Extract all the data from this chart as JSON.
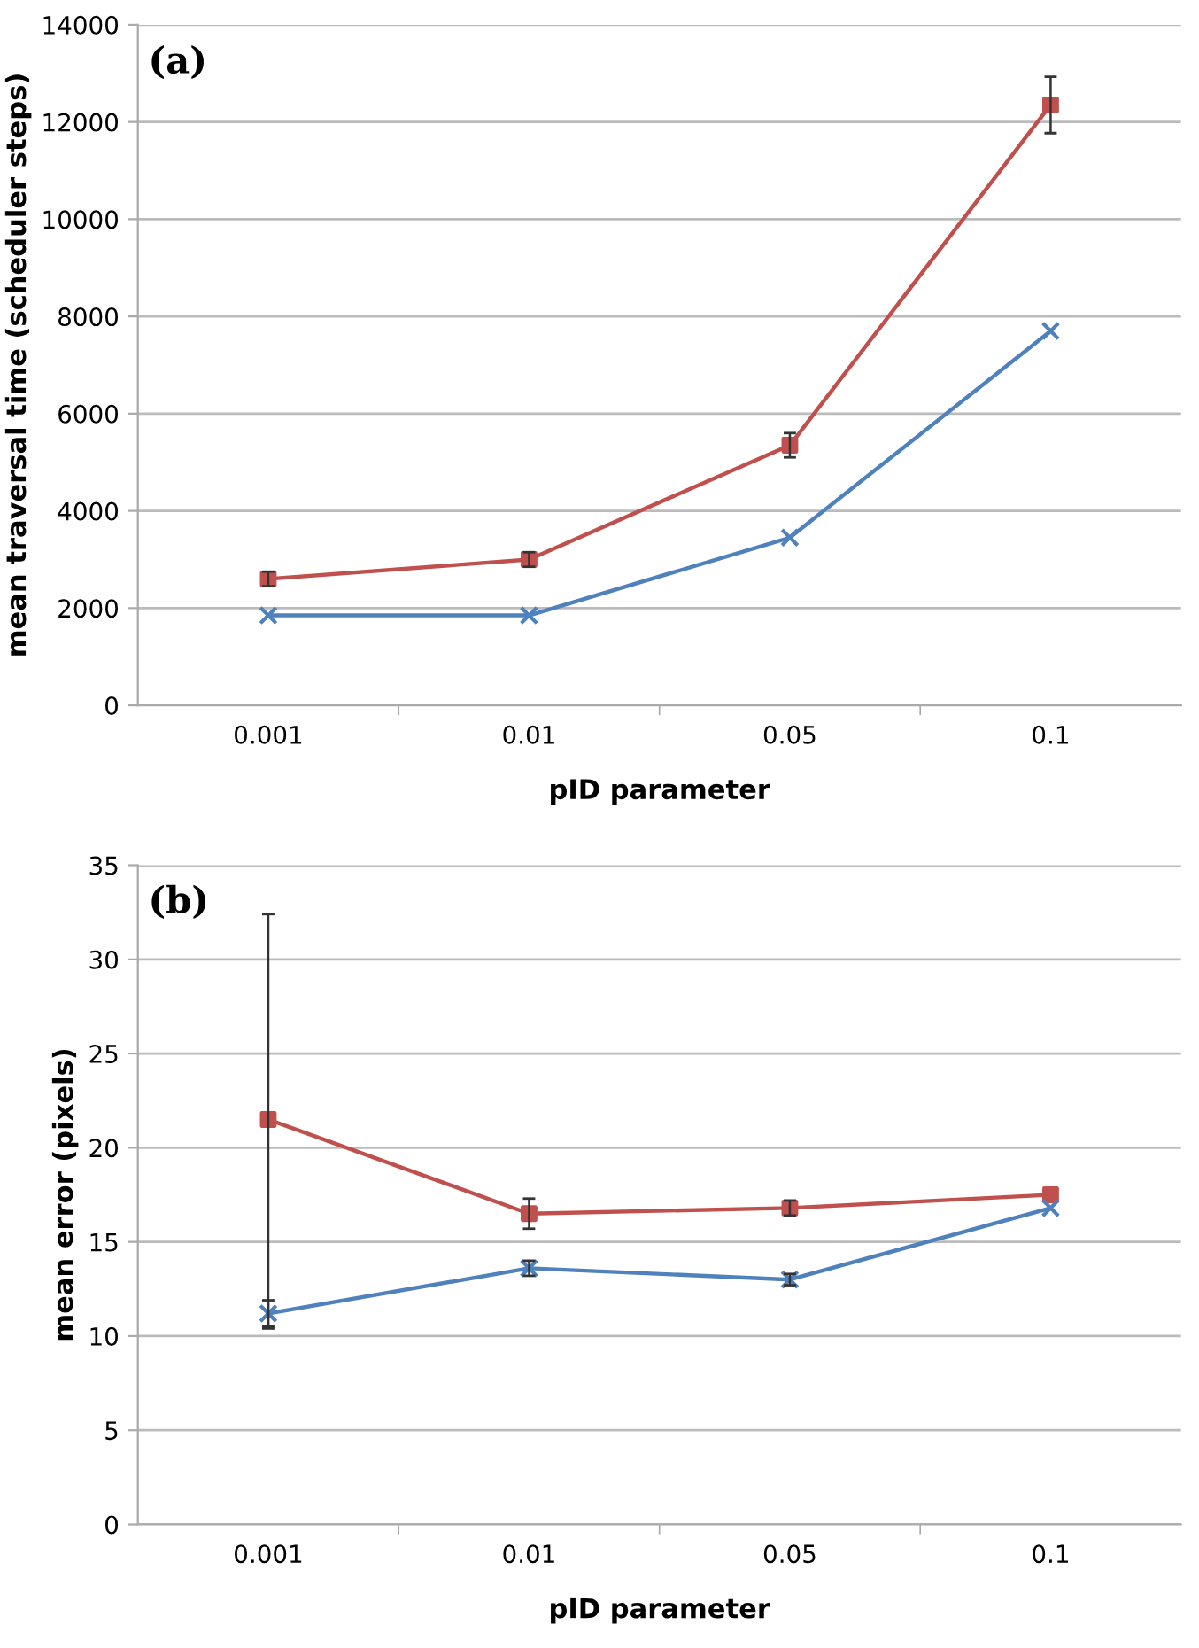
{
  "chart_data": [
    {
      "type": "line",
      "xlabel": "pID parameter",
      "ylabel": "mean traversal time (scheduler steps)",
      "annotations": [
        "(a)"
      ],
      "categories": [
        "0.001",
        "0.01",
        "0.05",
        "0.1"
      ],
      "ylim": [
        0,
        14000
      ],
      "yticks": [
        0,
        2000,
        4000,
        6000,
        8000,
        10000,
        12000,
        14000
      ],
      "grid": "y",
      "series": [
        {
          "color": "#c0504d",
          "marker": "square",
          "values": [
            2600,
            3000,
            5350,
            12350
          ],
          "errors": [
            150,
            150,
            250,
            580
          ]
        },
        {
          "color": "#4f81bd",
          "marker": "cross",
          "values": [
            1850,
            1850,
            3450,
            7700
          ]
        }
      ]
    },
    {
      "type": "line",
      "xlabel": "pID parameter",
      "ylabel": "mean error (pixels)",
      "annotations": [
        "(b)"
      ],
      "categories": [
        "0.001",
        "0.01",
        "0.05",
        "0.1"
      ],
      "ylim": [
        0,
        35
      ],
      "yticks": [
        0,
        5,
        10,
        15,
        20,
        25,
        30,
        35
      ],
      "grid": "y",
      "series": [
        {
          "color": "#c0504d",
          "marker": "square",
          "values": [
            21.5,
            16.5,
            16.8,
            17.5
          ],
          "errors": [
            [
              10.4,
              32.4
            ],
            0.8,
            0.4,
            null
          ]
        },
        {
          "color": "#4f81bd",
          "marker": "cross",
          "values": [
            11.2,
            13.6,
            13.0,
            16.8
          ],
          "errors": [
            0.7,
            0.4,
            0.3,
            null
          ]
        }
      ]
    }
  ]
}
